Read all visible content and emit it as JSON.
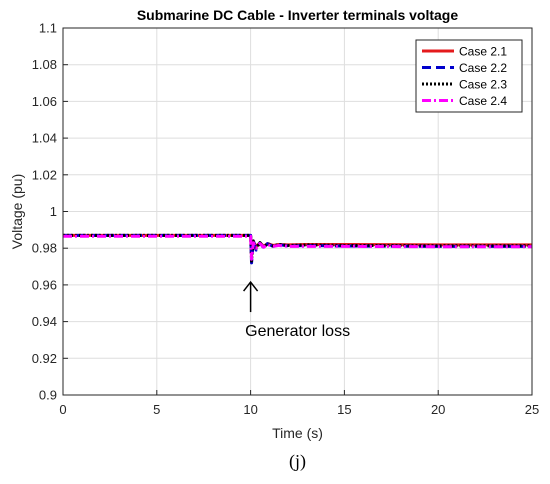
{
  "chart_data": {
    "type": "line",
    "title": "Submarine DC Cable - Inverter terminals voltage",
    "xlabel": "Time (s)",
    "ylabel": "Voltage (pu)",
    "xlim": [
      0,
      25
    ],
    "ylim": [
      0.9,
      1.1
    ],
    "xticks": [
      0,
      5,
      10,
      15,
      20,
      25
    ],
    "yticks": [
      0.9,
      0.92,
      0.94,
      0.96,
      0.98,
      1,
      1.02,
      1.04,
      1.06,
      1.08,
      1.1
    ],
    "grid": true,
    "legend_position": "top-right",
    "series": [
      {
        "name": "Case 2.1",
        "color": "#e41a1c",
        "dash": "solid",
        "x": [
          0,
          10,
          10.05,
          10.15,
          10.3,
          10.5,
          10.7,
          10.9,
          11.2,
          11.5,
          12,
          13,
          15,
          20,
          25
        ],
        "y": [
          0.987,
          0.987,
          0.976,
          0.983,
          0.981,
          0.983,
          0.981,
          0.9825,
          0.9815,
          0.982,
          0.9818,
          0.982,
          0.982,
          0.9818,
          0.9818
        ]
      },
      {
        "name": "Case 2.2",
        "color": "#0000cc",
        "dash": "dashed",
        "x": [
          0,
          10,
          10.05,
          10.15,
          10.3,
          10.5,
          10.7,
          10.9,
          11.2,
          11.5,
          12,
          13,
          15,
          20,
          25
        ],
        "y": [
          0.987,
          0.987,
          0.972,
          0.984,
          0.979,
          0.983,
          0.98,
          0.9825,
          0.981,
          0.982,
          0.9812,
          0.9815,
          0.9812,
          0.981,
          0.981
        ]
      },
      {
        "name": "Case 2.3",
        "color": "#000000",
        "dash": "dotted",
        "x": [
          0,
          10,
          10.05,
          10.15,
          10.3,
          10.5,
          10.7,
          10.9,
          11.2,
          11.5,
          12,
          13,
          15,
          20,
          25
        ],
        "y": [
          0.987,
          0.987,
          0.973,
          0.984,
          0.98,
          0.983,
          0.9805,
          0.9825,
          0.9812,
          0.982,
          0.9815,
          0.9818,
          0.9815,
          0.9813,
          0.9813
        ]
      },
      {
        "name": "Case 2.4",
        "color": "#ff00ff",
        "dash": "dashdot",
        "x": [
          0,
          10,
          10.05,
          10.15,
          10.3,
          10.5,
          10.7,
          10.9,
          11.2,
          11.5,
          12,
          13,
          15,
          20,
          25
        ],
        "y": [
          0.9865,
          0.9865,
          0.974,
          0.983,
          0.98,
          0.9825,
          0.9805,
          0.982,
          0.981,
          0.9815,
          0.981,
          0.981,
          0.981,
          0.9808,
          0.9808
        ]
      }
    ],
    "annotations": [
      {
        "text": "Generator loss",
        "x": 10,
        "y": 0.961,
        "arrow": "up"
      }
    ],
    "panel_label": "(j)"
  }
}
